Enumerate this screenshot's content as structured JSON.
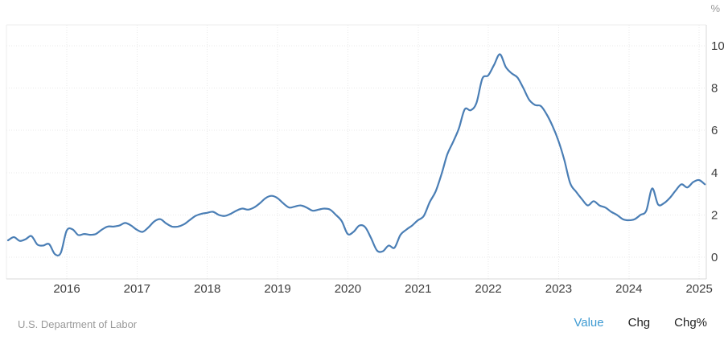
{
  "chart": {
    "unit_label": "%"
  },
  "footer": {
    "source": "U.S. Department of Labor",
    "series_toggles": [
      {
        "label": "Value",
        "active": true
      },
      {
        "label": "Chg",
        "active": false
      },
      {
        "label": "Chg%",
        "active": false
      }
    ]
  },
  "colors": {
    "line": "#4a7eb5",
    "grid": "#e9e9e9",
    "axis": "#d9d9d9",
    "plot_border": "#ececec",
    "tick_text": "#3d3d3d",
    "muted_text": "#9a9a9a",
    "active_link": "#3d9ad2",
    "link_text": "#222222"
  },
  "chart_data": {
    "type": "line",
    "title": "",
    "unit": "%",
    "frequency": "monthly",
    "x_start": "2015-03",
    "x_end": "2025-02",
    "x_tick_labels": [
      "2016",
      "2017",
      "2018",
      "2019",
      "2020",
      "2021",
      "2022",
      "2023",
      "2024",
      "2025"
    ],
    "y_tick_labels": [
      10,
      8,
      6,
      4,
      2,
      0
    ],
    "ylim": [
      -1.05,
      11.05
    ],
    "grid": true,
    "legend": false,
    "series": [
      {
        "name": "Value",
        "values": [
          0.8,
          0.95,
          0.77,
          0.85,
          1.0,
          0.6,
          0.55,
          0.62,
          0.15,
          0.2,
          1.25,
          1.32,
          1.05,
          1.1,
          1.06,
          1.1,
          1.3,
          1.45,
          1.45,
          1.5,
          1.62,
          1.5,
          1.3,
          1.2,
          1.42,
          1.7,
          1.8,
          1.6,
          1.45,
          1.45,
          1.55,
          1.75,
          1.95,
          2.05,
          2.1,
          2.15,
          2.0,
          1.95,
          2.05,
          2.2,
          2.3,
          2.25,
          2.35,
          2.55,
          2.8,
          2.9,
          2.8,
          2.55,
          2.35,
          2.4,
          2.45,
          2.35,
          2.2,
          2.25,
          2.3,
          2.25,
          2.0,
          1.7,
          1.1,
          1.2,
          1.5,
          1.42,
          0.9,
          0.32,
          0.28,
          0.55,
          0.45,
          1.05,
          1.3,
          1.5,
          1.75,
          1.95,
          2.6,
          3.1,
          3.9,
          4.85,
          5.45,
          6.1,
          7.0,
          6.95,
          7.3,
          8.45,
          8.6,
          9.1,
          9.6,
          9.0,
          8.7,
          8.5,
          8.0,
          7.45,
          7.2,
          7.15,
          6.75,
          6.2,
          5.5,
          4.6,
          3.5,
          3.1,
          2.75,
          2.45,
          2.65,
          2.45,
          2.35,
          2.15,
          2.0,
          1.8,
          1.75,
          1.8,
          2.0,
          2.2,
          3.25,
          2.5,
          2.55,
          2.8,
          3.15,
          3.45,
          3.3,
          3.55,
          3.65,
          3.45
        ]
      }
    ]
  }
}
